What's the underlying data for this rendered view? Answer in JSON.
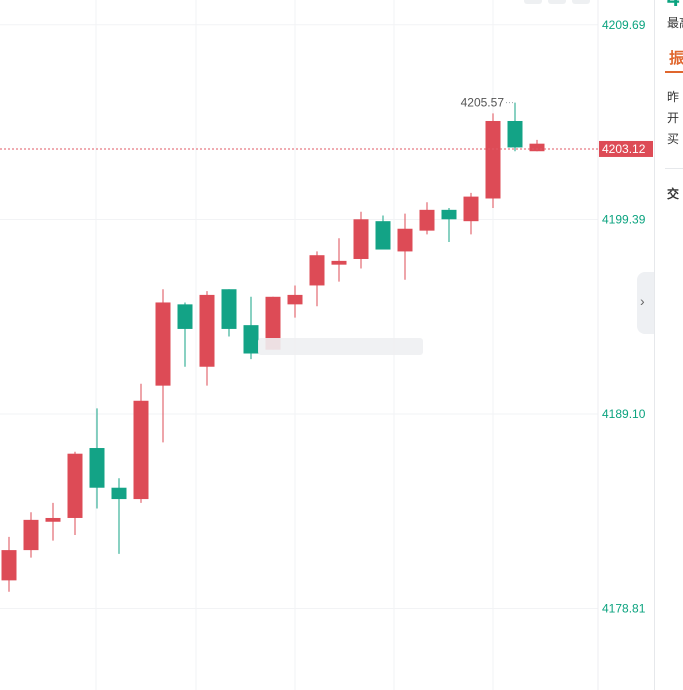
{
  "chart_data": {
    "type": "candlestick",
    "y_axis_ticks": [
      4209.69,
      4199.39,
      4189.1,
      4178.81
    ],
    "ylim": [
      4174.5,
      4211.0
    ],
    "current_price": 4203.12,
    "high_annotation": {
      "value": 4205.57,
      "label": "4205.57"
    },
    "colors": {
      "up": "#dd4b56",
      "down": "#13a386",
      "price_line": "#e05a65",
      "axis_text": "#0ba37f",
      "grid": "#f2f3f5"
    },
    "candles": [
      {
        "open": 4180.3,
        "close": 4181.9,
        "high": 4182.6,
        "low": 4179.7
      },
      {
        "open": 4181.9,
        "close": 4183.5,
        "high": 4183.9,
        "low": 4181.5
      },
      {
        "open": 4183.4,
        "close": 4183.6,
        "high": 4184.4,
        "low": 4182.4
      },
      {
        "open": 4183.6,
        "close": 4187.0,
        "high": 4187.1,
        "low": 4182.7
      },
      {
        "open": 4187.3,
        "close": 4185.2,
        "high": 4189.4,
        "low": 4184.1
      },
      {
        "open": 4185.2,
        "close": 4184.6,
        "high": 4185.7,
        "low": 4181.7
      },
      {
        "open": 4184.6,
        "close": 4189.8,
        "high": 4190.7,
        "low": 4184.4
      },
      {
        "open": 4190.6,
        "close": 4195.0,
        "high": 4195.7,
        "low": 4187.6
      },
      {
        "open": 4194.9,
        "close": 4193.6,
        "high": 4195.0,
        "low": 4191.6
      },
      {
        "open": 4191.6,
        "close": 4195.4,
        "high": 4195.6,
        "low": 4190.6
      },
      {
        "open": 4195.7,
        "close": 4193.6,
        "high": 4195.7,
        "low": 4193.2
      },
      {
        "open": 4193.8,
        "close": 4192.3,
        "high": 4195.3,
        "low": 4192.0
      },
      {
        "open": 4192.5,
        "close": 4195.3,
        "high": 4195.3,
        "low": 4192.5
      },
      {
        "open": 4194.9,
        "close": 4195.4,
        "high": 4195.9,
        "low": 4194.2
      },
      {
        "open": 4195.9,
        "close": 4197.5,
        "high": 4197.7,
        "low": 4194.8
      },
      {
        "open": 4197.0,
        "close": 4197.2,
        "high": 4198.4,
        "low": 4196.1
      },
      {
        "open": 4197.3,
        "close": 4199.4,
        "high": 4199.8,
        "low": 4196.8
      },
      {
        "open": 4199.3,
        "close": 4197.8,
        "high": 4199.6,
        "low": 4197.8
      },
      {
        "open": 4197.7,
        "close": 4198.9,
        "high": 4199.7,
        "low": 4196.2
      },
      {
        "open": 4198.8,
        "close": 4199.9,
        "high": 4200.3,
        "low": 4198.6
      },
      {
        "open": 4199.9,
        "close": 4199.4,
        "high": 4200.0,
        "low": 4198.2
      },
      {
        "open": 4199.3,
        "close": 4200.6,
        "high": 4200.8,
        "low": 4198.6
      },
      {
        "open": 4200.5,
        "close": 4204.6,
        "high": 4205.0,
        "low": 4200.0
      },
      {
        "open": 4204.6,
        "close": 4203.2,
        "high": 4205.57,
        "low": 4203.0
      },
      {
        "open": 4203.0,
        "close": 4203.4,
        "high": 4203.6,
        "low": 4203.0
      }
    ]
  },
  "price_tag": {
    "label": "4203.12"
  },
  "side_panel": {
    "top_value": "4",
    "labels": [
      "最高",
      "振",
      "昨",
      "开",
      "买",
      "交"
    ]
  },
  "nav": {
    "arrow": "›",
    "icon": "chevron-right-icon"
  },
  "watermark": {
    "text": " "
  }
}
